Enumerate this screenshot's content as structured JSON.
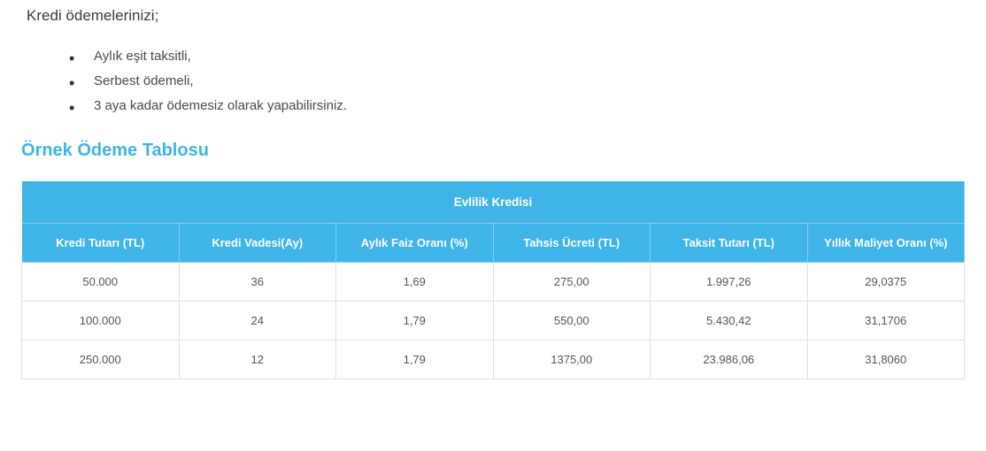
{
  "intro_text": "Kredi ödemelerinizi;",
  "bullets": [
    "Aylık eşit taksitli,",
    "Serbest ödemeli,",
    "3 aya kadar ödemesiz olarak yapabilirsiniz."
  ],
  "section_title": "Örnek Ödeme Tablosu",
  "section_title_color": "#3fb4e8",
  "table": {
    "caption": "Evlilik Kredisi",
    "header_bg": "#3fb4e8",
    "header_text_color": "#ffffff",
    "border_color": "#e0e0e0",
    "columns": [
      "Kredi Tutarı (TL)",
      "Kredi Vadesi(Ay)",
      "Aylık Faiz Oranı (%)",
      "Tahsis Ücreti (TL)",
      "Taksit Tutarı (TL)",
      "Yıllık Maliyet Oranı (%)"
    ],
    "rows": [
      [
        "50.000",
        "36",
        "1,69",
        "275,00",
        "1.997,26",
        "29,0375"
      ],
      [
        "100.000",
        "24",
        "1,79",
        "550,00",
        "5.430,42",
        "31,1706"
      ],
      [
        "250.000",
        "12",
        "1,79",
        "1375,00",
        "23.986,06",
        "31,8060"
      ]
    ]
  }
}
